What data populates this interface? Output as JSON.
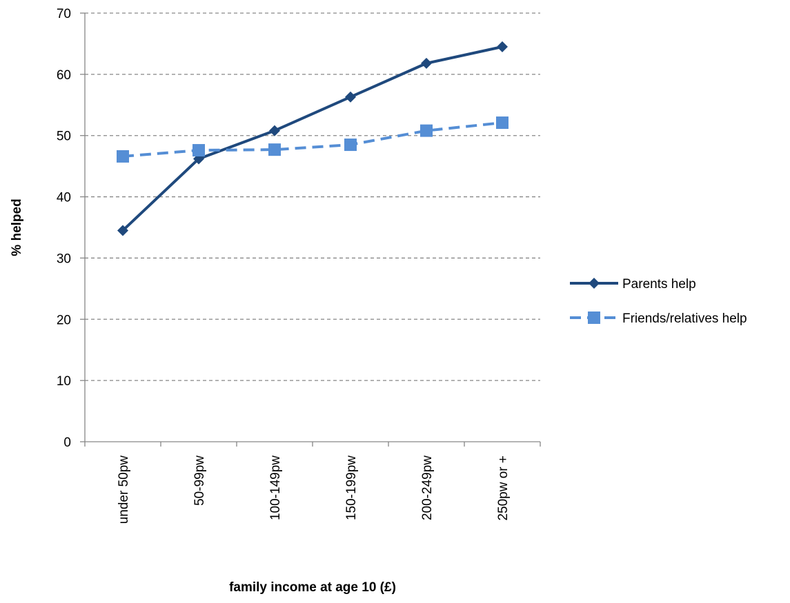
{
  "chart_data": {
    "type": "line",
    "title": "",
    "xlabel": "family income at age 10 (£)",
    "ylabel": "% helped",
    "categories": [
      "under 50pw",
      "50-99pw",
      "100-149pw",
      "150-199pw",
      "200-249pw",
      "250pw or +"
    ],
    "ylim": [
      0,
      70
    ],
    "yticks": [
      0,
      10,
      20,
      30,
      40,
      50,
      60,
      70
    ],
    "grid": true,
    "legend_position": "right",
    "series": [
      {
        "name": "Parents help",
        "values": [
          34.5,
          46.2,
          50.8,
          56.3,
          61.8,
          64.5
        ],
        "color": "#1F497D",
        "marker": "diamond",
        "line_style": "solid"
      },
      {
        "name": "Friends/relatives help",
        "values": [
          46.6,
          47.6,
          47.7,
          48.5,
          50.8,
          52.1
        ],
        "color": "#558ED5",
        "marker": "square",
        "line_style": "dashed"
      }
    ]
  }
}
